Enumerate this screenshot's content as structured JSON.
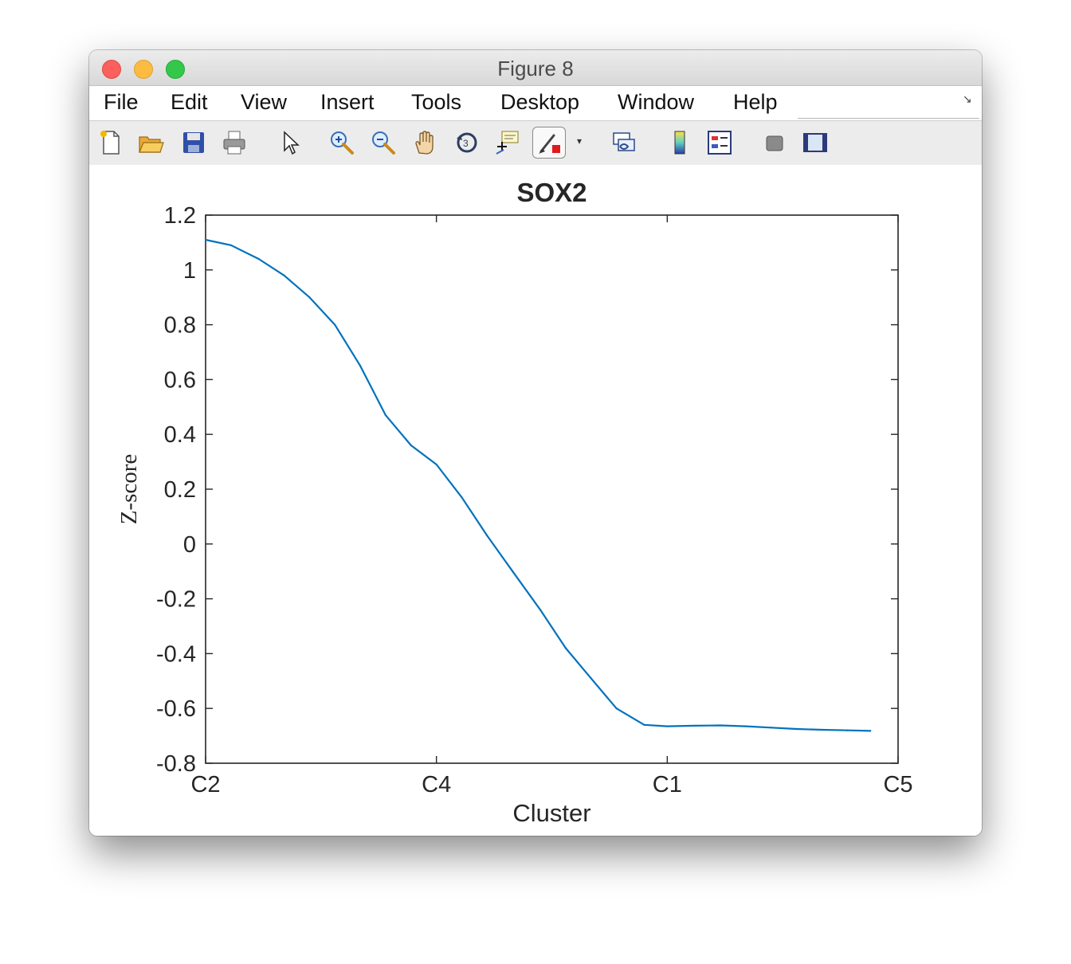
{
  "window": {
    "title": "Figure 8"
  },
  "menu": [
    "File",
    "Edit",
    "View",
    "Insert",
    "Tools",
    "Desktop",
    "Window",
    "Help"
  ],
  "toolbar": [
    "new-figure-icon",
    "open-file-icon",
    "save-icon",
    "print-icon",
    "edit-pointer-icon",
    "zoom-in-icon",
    "zoom-out-icon",
    "pan-hand-icon",
    "rotate-3d-icon",
    "data-cursor-icon",
    "brush-icon",
    "link-plot-icon",
    "colorbar-icon",
    "legend-icon",
    "hide-plot-tools-icon",
    "show-plot-tools-icon"
  ],
  "chart_data": {
    "type": "line",
    "title": "SOX2",
    "xlabel": "Cluster",
    "ylabel": "Z-score",
    "x_ticks": [
      "C2",
      "C4",
      "C1",
      "C5"
    ],
    "xlim": [
      0,
      3
    ],
    "ylim": [
      -0.8,
      1.2
    ],
    "y_ticks": [
      "1.2",
      "1",
      "0.8",
      "0.6",
      "0.4",
      "0.2",
      "0",
      "-0.2",
      "-0.4",
      "-0.6",
      "-0.8"
    ],
    "grid": false,
    "line_color": "#0072BD",
    "series": [
      {
        "x": [
          0,
          0.11,
          0.23,
          0.34,
          0.45,
          0.56,
          0.67,
          0.78,
          0.89,
          1.0,
          1.11,
          1.22,
          1.33,
          1.45,
          1.56,
          1.67,
          1.78,
          1.9,
          2.0,
          2.12,
          2.23,
          2.34,
          2.45,
          2.56,
          2.67,
          2.78,
          2.88
        ],
        "y": [
          1.11,
          1.09,
          1.04,
          0.98,
          0.9,
          0.8,
          0.65,
          0.47,
          0.36,
          0.29,
          0.17,
          0.03,
          -0.1,
          -0.24,
          -0.38,
          -0.49,
          -0.6,
          -0.66,
          -0.665,
          -0.663,
          -0.662,
          -0.665,
          -0.67,
          -0.675,
          -0.678,
          -0.68,
          -0.682
        ]
      }
    ]
  }
}
